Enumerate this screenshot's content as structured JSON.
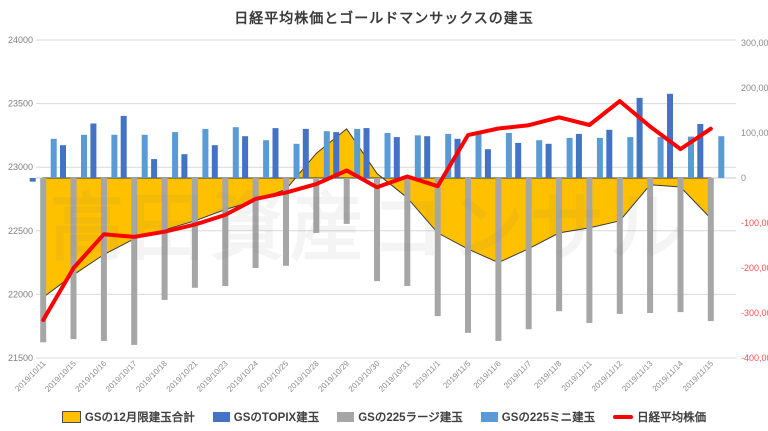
{
  "watermark": {
    "text": "高田資産コンサル"
  },
  "chart_data": {
    "type": "combo",
    "title": "日経平均株価とゴールドマンサックスの建玉",
    "grid": true,
    "legend_position": "bottom",
    "categories": [
      "2019/10/11",
      "2019/10/15",
      "2019/10/16",
      "2019/10/17",
      "2019/10/18",
      "2019/10/21",
      "2019/10/23",
      "2019/10/24",
      "2019/10/25",
      "2019/10/28",
      "2019/10/29",
      "2019/10/30",
      "2019/10/31",
      "2019/11/1",
      "2019/11/5",
      "2019/11/6",
      "2019/11/7",
      "2019/11/8",
      "2019/11/11",
      "2019/11/12",
      "2019/11/13",
      "2019/11/14",
      "2019/11/15"
    ],
    "left_axis": {
      "title": "",
      "min": 21500,
      "max": 24000,
      "tick_interval": 500,
      "ticks": [
        "24000",
        "23500",
        "23000",
        "22500",
        "22000",
        "21500"
      ],
      "label_color": "#7f7f7f"
    },
    "right_axis": {
      "title": "",
      "min": -400000,
      "max": 300000,
      "tick_interval": 100000,
      "ticks": [
        "300,000",
        "200,000",
        "100,000",
        "0",
        "-100,000",
        "-200,000",
        "-300,000",
        "-400,000"
      ],
      "positive_color": "#8c8c8c",
      "negative_color": "#ff5050"
    },
    "series": [
      {
        "name": "GSの12月限建玉合計",
        "type": "area",
        "axis": "right",
        "color": "#FFC000",
        "border_color": "#3a3a3a",
        "values": [
          -265000,
          -215000,
          -170000,
          -135000,
          -115000,
          -95000,
          -70000,
          -50000,
          -25000,
          55000,
          109000,
          10000,
          -44000,
          -122000,
          -158000,
          -188000,
          -157000,
          -122000,
          -111000,
          -95000,
          -15000,
          -20000,
          -90000
        ]
      },
      {
        "name": "GSのTOPIX建玉",
        "type": "bar",
        "axis": "right",
        "color": "#4472C4",
        "values": [
          -8000,
          73000,
          121000,
          138000,
          42000,
          53000,
          73000,
          93000,
          111000,
          109000,
          102000,
          111000,
          91000,
          93000,
          87000,
          64000,
          78000,
          76000,
          98000,
          107000,
          178000,
          187000,
          120000
        ]
      },
      {
        "name": "GSの225ラージ建玉",
        "type": "bar",
        "axis": "right",
        "color": "#A6A6A6",
        "values": [
          -365000,
          -358000,
          -362000,
          -371000,
          -271000,
          -244000,
          -240000,
          -200000,
          -195000,
          -122000,
          -102000,
          -229000,
          -240000,
          -307000,
          -344000,
          -362000,
          -336000,
          -296000,
          -322000,
          -302000,
          -300000,
          -298000,
          -318000
        ]
      },
      {
        "name": "GSの225ミニ建玉",
        "type": "bar",
        "axis": "right",
        "color": "#5B9BD5",
        "values": [
          87000,
          96000,
          96000,
          96000,
          102000,
          109000,
          113000,
          84000,
          76000,
          104000,
          109000,
          100000,
          95000,
          98000,
          98000,
          100000,
          84000,
          89000,
          89000,
          91000,
          91000,
          92000,
          93000
        ]
      },
      {
        "name": "日経平均株価",
        "type": "line",
        "axis": "left",
        "color": "#FF0000",
        "values": [
          21799,
          22207,
          22473,
          22452,
          22493,
          22549,
          22625,
          22751,
          22800,
          22867,
          22974,
          22843,
          22927,
          22851,
          23252,
          23304,
          23330,
          23392,
          23332,
          23520,
          23320,
          23142,
          23303
        ]
      }
    ]
  }
}
